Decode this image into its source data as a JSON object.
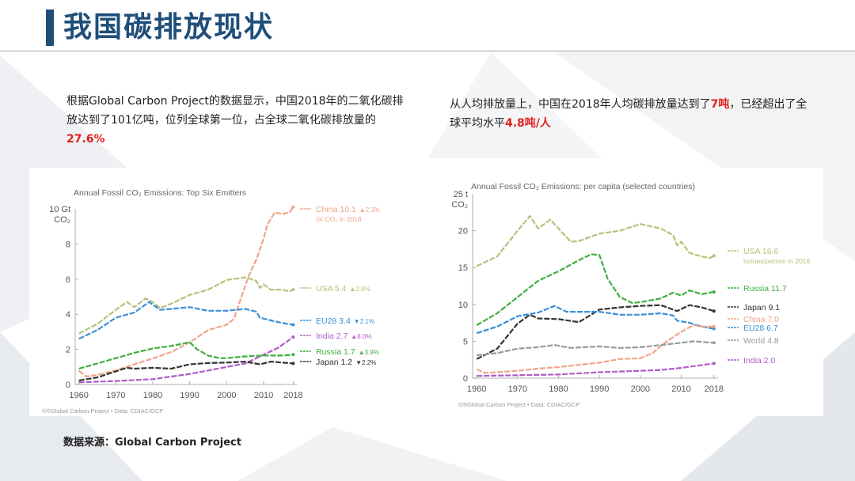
{
  "header": {
    "title": "我国碳排放现状"
  },
  "left_text": {
    "pre": "根据Global Carbon Project的数据显示，中国2018年的二氧化碳排放达到了101亿吨，位列全球第一位，占全球二氧化碳排放量的",
    "highlight": "27.6%"
  },
  "right_text": {
    "pre": "从人均排放量上，中国在2018年人均碳排放量达到了",
    "highlight1": "7吨",
    "mid": "，已经超出了全球平均水平",
    "highlight2": "4.8吨/人"
  },
  "footer": {
    "label": "数据来源：",
    "source": "Global Carbon Project"
  },
  "colors": {
    "accent": "#1f4e79",
    "highlight": "#e02020",
    "china": "#f0a488",
    "usa": "#b5c27a",
    "eu28": "#3a8fd8",
    "india": "#b05cc8",
    "russia": "#3fae3f",
    "japan": "#333333",
    "world": "#999999"
  },
  "chart_data": [
    {
      "type": "line",
      "title": "Annual Fossil CO₂ Emissions: Top Six Emitters",
      "ylabel": "10 Gt CO₂",
      "xlim": [
        1959,
        2019
      ],
      "ylim": [
        0,
        10
      ],
      "x_ticks": [
        "1960",
        "1970",
        "1980",
        "1990",
        "2000",
        "2010",
        "2018"
      ],
      "y_ticks": [
        "0",
        "2",
        "4",
        "6",
        "8"
      ],
      "y_top_label": "10 Gt",
      "y_unit": "CO₂",
      "credits": "©®Global Carbon Project  •  Data: CDIAC/GCP",
      "series": [
        {
          "name": "China",
          "label_value": "10.1",
          "label_change": "▲2.3%",
          "label_note": "Gt CO₂ in 2018",
          "color_key": "china",
          "points": [
            [
              1960,
              0.78
            ],
            [
              1962,
              0.45
            ],
            [
              1965,
              0.55
            ],
            [
              1970,
              0.8
            ],
            [
              1975,
              1.15
            ],
            [
              1980,
              1.48
            ],
            [
              1985,
              1.85
            ],
            [
              1990,
              2.4
            ],
            [
              1995,
              3.1
            ],
            [
              2000,
              3.4
            ],
            [
              2002,
              3.75
            ],
            [
              2004,
              5.0
            ],
            [
              2006,
              6.2
            ],
            [
              2008,
              7.1
            ],
            [
              2010,
              8.3
            ],
            [
              2011,
              9.1
            ],
            [
              2013,
              9.8
            ],
            [
              2015,
              9.7
            ],
            [
              2017,
              9.8
            ],
            [
              2018,
              10.1
            ]
          ]
        },
        {
          "name": "USA",
          "label_value": "5.4",
          "label_change": "▲2.8%",
          "color_key": "usa",
          "points": [
            [
              1960,
              2.9
            ],
            [
              1965,
              3.45
            ],
            [
              1970,
              4.25
            ],
            [
              1973,
              4.7
            ],
            [
              1975,
              4.4
            ],
            [
              1978,
              4.9
            ],
            [
              1980,
              4.7
            ],
            [
              1982,
              4.35
            ],
            [
              1985,
              4.6
            ],
            [
              1990,
              5.1
            ],
            [
              1995,
              5.4
            ],
            [
              2000,
              5.95
            ],
            [
              2005,
              6.1
            ],
            [
              2008,
              5.9
            ],
            [
              2009,
              5.5
            ],
            [
              2010,
              5.7
            ],
            [
              2012,
              5.4
            ],
            [
              2015,
              5.4
            ],
            [
              2017,
              5.3
            ],
            [
              2018,
              5.4
            ]
          ]
        },
        {
          "name": "EU28",
          "label_value": "3.4",
          "label_change": "▼2.1%",
          "color_key": "eu28",
          "points": [
            [
              1960,
              2.6
            ],
            [
              1965,
              3.1
            ],
            [
              1970,
              3.8
            ],
            [
              1975,
              4.1
            ],
            [
              1979,
              4.7
            ],
            [
              1982,
              4.25
            ],
            [
              1985,
              4.3
            ],
            [
              1990,
              4.4
            ],
            [
              1995,
              4.2
            ],
            [
              2000,
              4.2
            ],
            [
              2005,
              4.3
            ],
            [
              2008,
              4.15
            ],
            [
              2009,
              3.8
            ],
            [
              2012,
              3.65
            ],
            [
              2015,
              3.5
            ],
            [
              2018,
              3.4
            ]
          ]
        },
        {
          "name": "India",
          "label_value": "2.7",
          "label_change": "▲8.0%",
          "color_key": "india",
          "points": [
            [
              1960,
              0.12
            ],
            [
              1970,
              0.2
            ],
            [
              1980,
              0.3
            ],
            [
              1990,
              0.6
            ],
            [
              2000,
              1.0
            ],
            [
              2005,
              1.2
            ],
            [
              2010,
              1.7
            ],
            [
              2014,
              2.1
            ],
            [
              2018,
              2.7
            ]
          ]
        },
        {
          "name": "Russia",
          "label_value": "1.7",
          "label_change": "▲3.9%",
          "color_key": "russia",
          "points": [
            [
              1960,
              0.9
            ],
            [
              1965,
              1.2
            ],
            [
              1970,
              1.5
            ],
            [
              1975,
              1.8
            ],
            [
              1980,
              2.05
            ],
            [
              1985,
              2.2
            ],
            [
              1990,
              2.4
            ],
            [
              1992,
              2.0
            ],
            [
              1995,
              1.65
            ],
            [
              1998,
              1.5
            ],
            [
              2000,
              1.5
            ],
            [
              2005,
              1.6
            ],
            [
              2010,
              1.65
            ],
            [
              2015,
              1.65
            ],
            [
              2018,
              1.7
            ]
          ]
        },
        {
          "name": "Japan",
          "label_value": "1.2",
          "label_change": "▼2.2%",
          "color_key": "japan",
          "points": [
            [
              1960,
              0.23
            ],
            [
              1965,
              0.4
            ],
            [
              1970,
              0.75
            ],
            [
              1973,
              0.95
            ],
            [
              1975,
              0.9
            ],
            [
              1980,
              0.95
            ],
            [
              1985,
              0.9
            ],
            [
              1990,
              1.15
            ],
            [
              1995,
              1.22
            ],
            [
              2000,
              1.25
            ],
            [
              2005,
              1.3
            ],
            [
              2009,
              1.15
            ],
            [
              2012,
              1.3
            ],
            [
              2015,
              1.25
            ],
            [
              2018,
              1.2
            ]
          ]
        }
      ]
    },
    {
      "type": "line",
      "title": "Annual Fossil CO₂ Emissions: per capita (selected countries)",
      "ylabel": "t CO₂",
      "xlim": [
        1959,
        2019
      ],
      "ylim": [
        0,
        25
      ],
      "x_ticks": [
        "1960",
        "1970",
        "1980",
        "1990",
        "2000",
        "2010",
        "2018"
      ],
      "y_ticks": [
        "0",
        "5",
        "10",
        "15",
        "20"
      ],
      "y_top_label": "25 t",
      "y_unit": "CO₂",
      "credits": "©®Global Carbon Project  •  Data: CDIAC/GCP",
      "series": [
        {
          "name": "USA",
          "label_value": "16.6",
          "label_note": "tonnes/person in 2018",
          "color_key": "usa",
          "points": [
            [
              1960,
              15.2
            ],
            [
              1965,
              16.5
            ],
            [
              1970,
              20.0
            ],
            [
              1973,
              22.0
            ],
            [
              1975,
              20.3
            ],
            [
              1978,
              21.5
            ],
            [
              1980,
              20.3
            ],
            [
              1983,
              18.5
            ],
            [
              1985,
              18.6
            ],
            [
              1990,
              19.6
            ],
            [
              1995,
              20.0
            ],
            [
              2000,
              20.9
            ],
            [
              2005,
              20.3
            ],
            [
              2008,
              19.4
            ],
            [
              2009,
              18.0
            ],
            [
              2010,
              18.5
            ],
            [
              2012,
              17.0
            ],
            [
              2015,
              16.5
            ],
            [
              2017,
              16.3
            ],
            [
              2018,
              16.6
            ]
          ]
        },
        {
          "name": "Russia",
          "label_value": "11.7",
          "color_key": "russia",
          "points": [
            [
              1960,
              7.2
            ],
            [
              1965,
              8.8
            ],
            [
              1970,
              11.0
            ],
            [
              1975,
              13.2
            ],
            [
              1980,
              14.5
            ],
            [
              1985,
              16.0
            ],
            [
              1988,
              16.8
            ],
            [
              1990,
              16.7
            ],
            [
              1992,
              13.5
            ],
            [
              1995,
              11.0
            ],
            [
              1998,
              10.2
            ],
            [
              2000,
              10.3
            ],
            [
              2005,
              10.8
            ],
            [
              2008,
              11.6
            ],
            [
              2010,
              11.2
            ],
            [
              2012,
              11.9
            ],
            [
              2015,
              11.4
            ],
            [
              2018,
              11.7
            ]
          ]
        },
        {
          "name": "Japan",
          "label_value": "9.1",
          "color_key": "japan",
          "points": [
            [
              1960,
              2.6
            ],
            [
              1965,
              4.0
            ],
            [
              1970,
              7.4
            ],
            [
              1973,
              8.6
            ],
            [
              1975,
              8.1
            ],
            [
              1980,
              8.0
            ],
            [
              1985,
              7.6
            ],
            [
              1990,
              9.3
            ],
            [
              1995,
              9.6
            ],
            [
              2000,
              9.8
            ],
            [
              2005,
              9.9
            ],
            [
              2009,
              9.1
            ],
            [
              2012,
              9.9
            ],
            [
              2015,
              9.6
            ],
            [
              2018,
              9.1
            ]
          ]
        },
        {
          "name": "EU28",
          "label_value": "6.7",
          "color_key": "eu28",
          "points": [
            [
              1960,
              6.1
            ],
            [
              1965,
              7.0
            ],
            [
              1970,
              8.4
            ],
            [
              1975,
              8.9
            ],
            [
              1979,
              9.8
            ],
            [
              1982,
              9.0
            ],
            [
              1985,
              9.0
            ],
            [
              1990,
              9.0
            ],
            [
              1995,
              8.6
            ],
            [
              2000,
              8.6
            ],
            [
              2005,
              8.8
            ],
            [
              2008,
              8.5
            ],
            [
              2009,
              7.8
            ],
            [
              2012,
              7.5
            ],
            [
              2015,
              7.0
            ],
            [
              2018,
              6.7
            ]
          ]
        },
        {
          "name": "China",
          "label_value": "7.0",
          "color_key": "china",
          "points": [
            [
              1960,
              1.2
            ],
            [
              1962,
              0.7
            ],
            [
              1970,
              1.0
            ],
            [
              1975,
              1.3
            ],
            [
              1980,
              1.5
            ],
            [
              1985,
              1.8
            ],
            [
              1990,
              2.1
            ],
            [
              1995,
              2.6
            ],
            [
              2000,
              2.7
            ],
            [
              2003,
              3.4
            ],
            [
              2006,
              4.8
            ],
            [
              2010,
              6.3
            ],
            [
              2013,
              7.2
            ],
            [
              2015,
              7.0
            ],
            [
              2018,
              7.0
            ]
          ]
        },
        {
          "name": "World",
          "label_value": "4.8",
          "color_key": "world",
          "points": [
            [
              1960,
              3.1
            ],
            [
              1965,
              3.4
            ],
            [
              1970,
              4.0
            ],
            [
              1975,
              4.2
            ],
            [
              1979,
              4.5
            ],
            [
              1983,
              4.1
            ],
            [
              1990,
              4.3
            ],
            [
              1995,
              4.1
            ],
            [
              2000,
              4.2
            ],
            [
              2005,
              4.5
            ],
            [
              2010,
              4.8
            ],
            [
              2013,
              5.0
            ],
            [
              2018,
              4.8
            ]
          ]
        },
        {
          "name": "India",
          "label_value": "2.0",
          "color_key": "india",
          "points": [
            [
              1960,
              0.3
            ],
            [
              1970,
              0.4
            ],
            [
              1980,
              0.5
            ],
            [
              1990,
              0.8
            ],
            [
              2000,
              1.0
            ],
            [
              2005,
              1.1
            ],
            [
              2010,
              1.4
            ],
            [
              2014,
              1.7
            ],
            [
              2018,
              2.0
            ]
          ]
        }
      ]
    }
  ]
}
